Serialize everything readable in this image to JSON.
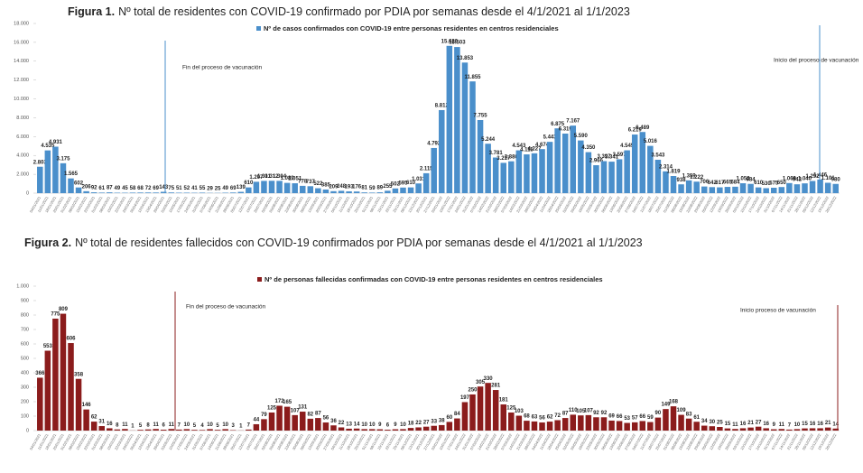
{
  "chart_data": [
    {
      "type": "bar",
      "figure_label": "Figura 1.",
      "title": "Nº total de residentes con COVID-19 confirmado por PDIA por semanas desde el 4/1/2021 al 1/1/2023",
      "series": [
        {
          "name": "Nº de casos confirmados con COVID-19 entre personas residentes en centros residenciales",
          "color": "#4a8fcb",
          "values": [
            2803,
            4535,
            4931,
            3175,
            1565,
            602,
            206,
            92,
            61,
            87,
            49,
            45,
            58,
            68,
            72,
            69,
            143,
            75,
            51,
            52,
            41,
            55,
            29,
            25,
            49,
            69,
            139,
            610,
            1207,
            1301,
            1312,
            1304,
            1089,
            1051,
            778,
            737,
            522,
            385,
            209,
            248,
            193,
            176,
            81,
            59,
            89,
            255,
            502,
            595,
            610,
            1031,
            2115,
            4792,
            8812,
            15626,
            15503,
            13853,
            11855,
            7755,
            5244,
            3781,
            3217,
            3380,
            4543,
            4115,
            4227,
            4674,
            5443,
            6875,
            6319,
            7167,
            5590,
            4350,
            2966,
            3397,
            3341,
            3597,
            4545,
            6219,
            6489,
            5016,
            3543,
            2314,
            1819,
            938,
            1359,
            1222,
            706,
            642,
            617,
            665,
            684,
            1052,
            984,
            610,
            530,
            575,
            650,
            1069,
            942,
            1040,
            1292,
            1446,
            1101,
            980
          ],
          "value_labels": [
            "2.803",
            "4.535",
            "4.931",
            "3.175",
            "1.565",
            "602",
            "206",
            "92",
            "61",
            "87",
            "49",
            "45",
            "58",
            "68",
            "72",
            "69",
            "143",
            "75",
            "51",
            "52",
            "41",
            "55",
            "29",
            "25",
            "49",
            "69",
            "139",
            "610",
            "1.207",
            "1.301",
            "1.312",
            "1.304",
            "1.089",
            "1.051",
            "778",
            "737",
            "522",
            "385",
            "209",
            "248",
            "193",
            "176",
            "81",
            "59",
            "89",
            "255",
            "502",
            "595",
            "610",
            "1.031",
            "2.115",
            "4.792",
            "8.812",
            "15.626",
            "15.503",
            "13.853",
            "11.855",
            "7.755",
            "5.244",
            "3.781",
            "3.217",
            "3.380",
            "4.543",
            "4.115",
            "4.227",
            "4.674",
            "5.443",
            "6.875",
            "6.319",
            "7.167",
            "5.590",
            "4.350",
            "2.966",
            "3.397",
            "3.341",
            "3.597",
            "4.545",
            "6.219",
            "6.489",
            "5.016",
            "3.543",
            "2.314",
            "1.819",
            "938",
            "1.359",
            "1.222",
            "706",
            "642",
            "617",
            "665",
            "684",
            "1.052",
            "984",
            "610",
            "530",
            "575",
            "650",
            "1.069",
            "942",
            "1.040",
            "1.292",
            "1.446",
            "1.101",
            "980"
          ]
        }
      ],
      "categories": [
        "04/01/2021",
        "11/01/2021",
        "18/01/2021",
        "25/01/2021",
        "01/02/2021",
        "08/02/2021",
        "15/02/2021",
        "22/02/2021",
        "01/03/2021",
        "08/03/2021",
        "15/03/2021",
        "22/03/2021",
        "29/03/2021",
        "05/04/2021",
        "12/04/2021",
        "19/04/2021",
        "26/04/2021",
        "03/05/2021",
        "10/05/2021",
        "17/05/2021",
        "24/05/2021",
        "31/05/2021",
        "07/06/2021",
        "14/06/2021",
        "21/06/2021",
        "28/06/2021",
        "05/07/2021",
        "12/07/2021",
        "19/07/2021",
        "26/07/2021",
        "02/08/2021",
        "09/08/2021",
        "16/08/2021",
        "23/08/2021",
        "30/08/2021",
        "06/09/2021",
        "13/09/2021",
        "20/09/2021",
        "27/09/2021",
        "04/10/2021",
        "11/10/2021",
        "18/10/2021",
        "25/10/2021",
        "01/11/2021",
        "08/11/2021",
        "15/11/2021",
        "22/11/2021",
        "29/11/2021",
        "06/12/2021",
        "13/12/2021",
        "20/12/2021",
        "27/12/2021",
        "03/01/2022",
        "10/01/2022",
        "17/01/2022",
        "24/01/2022",
        "31/01/2022",
        "07/02/2022",
        "14/02/2022",
        "21/02/2022",
        "28/02/2022",
        "07/03/2022",
        "14/03/2022",
        "21/03/2022",
        "28/03/2022",
        "04/04/2022",
        "11/04/2022",
        "18/04/2022",
        "25/04/2022",
        "02/05/2022",
        "09/05/2022",
        "16/05/2022",
        "23/05/2022",
        "30/05/2022",
        "06/06/2022",
        "13/06/2022",
        "20/06/2022",
        "27/06/2022",
        "04/07/2022",
        "11/07/2022",
        "18/07/2022",
        "25/07/2022",
        "01/08/2022",
        "08/08/2022",
        "15/08/2022",
        "22/08/2022",
        "29/08/2022",
        "05/09/2022",
        "12/09/2022",
        "19/09/2022",
        "26/09/2022",
        "03/10/2022",
        "10/10/2022",
        "17/10/2022",
        "24/10/2022",
        "31/10/2022",
        "07/11/2022",
        "14/11/2022",
        "21/11/2022",
        "28/11/2022",
        "05/12/2022",
        "12/12/2022",
        "19/12/2022",
        "26/12/2022"
      ],
      "ylim": [
        0,
        18000
      ],
      "yticks": [
        0,
        {
          "value": 2000,
          "label": "2.000"
        },
        {
          "value": 4000,
          "label": "4.000"
        },
        {
          "value": 6000,
          "label": "6.000"
        },
        {
          "value": 8000,
          "label": "8.000"
        },
        {
          "value": 10000,
          "label": "10.000"
        },
        {
          "value": 12000,
          "label": "12.000"
        },
        {
          "value": 14000,
          "label": "14.000"
        },
        {
          "value": 16000,
          "label": "16.000"
        },
        {
          "value": 18000,
          "label": "18.000"
        }
      ],
      "annotations": [
        "Fin del proceso de vacunación",
        "Inicio del proceso de vacunación"
      ]
    },
    {
      "type": "bar",
      "figure_label": "Figura 2.",
      "title": "Nº total de residentes fallecidos con COVID-19 confirmados por PDIA por semanas desde el 4/1/2021 al 1/1/2023",
      "series": [
        {
          "name": "Nº de personas fallecidas confirmadas con COVID-19 entre personas residentes en centros residenciales",
          "color": "#8b1c1c",
          "values": [
            366,
            553,
            775,
            809,
            606,
            358,
            146,
            62,
            31,
            16,
            8,
            11,
            1,
            5,
            8,
            11,
            6,
            11,
            7,
            10,
            5,
            4,
            10,
            5,
            10,
            3,
            1,
            7,
            44,
            79,
            125,
            172,
            165,
            107,
            131,
            82,
            87,
            56,
            36,
            22,
            13,
            14,
            10,
            10,
            9,
            6,
            9,
            10,
            18,
            22,
            27,
            33,
            38,
            60,
            84,
            197,
            250,
            305,
            330,
            281,
            181,
            125,
            103,
            68,
            63,
            56,
            62,
            72,
            87,
            110,
            105,
            107,
            92,
            92,
            69,
            66,
            53,
            57,
            66,
            59,
            90,
            149,
            168,
            109,
            83,
            61,
            34,
            30,
            25,
            15,
            11,
            16,
            21,
            27,
            16,
            9,
            11,
            7,
            10,
            15,
            16,
            16,
            21,
            14
          ]
        }
      ],
      "categories": [
        "04/01/2021",
        "11/01/2021",
        "18/01/2021",
        "25/01/2021",
        "01/02/2021",
        "08/02/2021",
        "15/02/2021",
        "22/02/2021",
        "01/03/2021",
        "08/03/2021",
        "15/03/2021",
        "22/03/2021",
        "29/03/2021",
        "05/04/2021",
        "12/04/2021",
        "19/04/2021",
        "26/04/2021",
        "03/05/2021",
        "10/05/2021",
        "17/05/2021",
        "24/05/2021",
        "31/05/2021",
        "07/06/2021",
        "14/06/2021",
        "21/06/2021",
        "28/06/2021",
        "05/07/2021",
        "12/07/2021",
        "19/07/2021",
        "26/07/2021",
        "02/08/2021",
        "09/08/2021",
        "16/08/2021",
        "23/08/2021",
        "30/08/2021",
        "06/09/2021",
        "13/09/2021",
        "20/09/2021",
        "27/09/2021",
        "04/10/2021",
        "11/10/2021",
        "18/10/2021",
        "25/10/2021",
        "01/11/2021",
        "08/11/2021",
        "15/11/2021",
        "22/11/2021",
        "29/11/2021",
        "06/12/2021",
        "13/12/2021",
        "20/12/2021",
        "27/12/2021",
        "03/01/2022",
        "10/01/2022",
        "17/01/2022",
        "24/01/2022",
        "31/01/2022",
        "07/02/2022",
        "14/02/2022",
        "21/02/2022",
        "28/02/2022",
        "07/03/2022",
        "14/03/2022",
        "21/03/2022",
        "28/03/2022",
        "04/04/2022",
        "11/04/2022",
        "18/04/2022",
        "25/04/2022",
        "02/05/2022",
        "09/05/2022",
        "16/05/2022",
        "23/05/2022",
        "30/05/2022",
        "06/06/2022",
        "13/06/2022",
        "20/06/2022",
        "27/06/2022",
        "04/07/2022",
        "11/07/2022",
        "18/07/2022",
        "25/07/2022",
        "01/08/2022",
        "08/08/2022",
        "15/08/2022",
        "22/08/2022",
        "29/08/2022",
        "05/09/2022",
        "12/09/2022",
        "19/09/2022",
        "26/09/2022",
        "03/10/2022",
        "10/10/2022",
        "17/10/2022",
        "24/10/2022",
        "31/10/2022",
        "07/11/2022",
        "14/11/2022",
        "21/11/2022",
        "28/11/2022",
        "05/12/2022",
        "12/12/2022",
        "19/12/2022",
        "26/12/2022"
      ],
      "ylim": [
        0,
        1000
      ],
      "yticks": [
        0,
        100,
        200,
        300,
        400,
        500,
        600,
        700,
        800,
        900,
        {
          "value": 1000,
          "label": "1.000"
        }
      ],
      "annotations": [
        "Fin del proceso de vacunación",
        "Inicio proceso de vacunación"
      ]
    }
  ]
}
